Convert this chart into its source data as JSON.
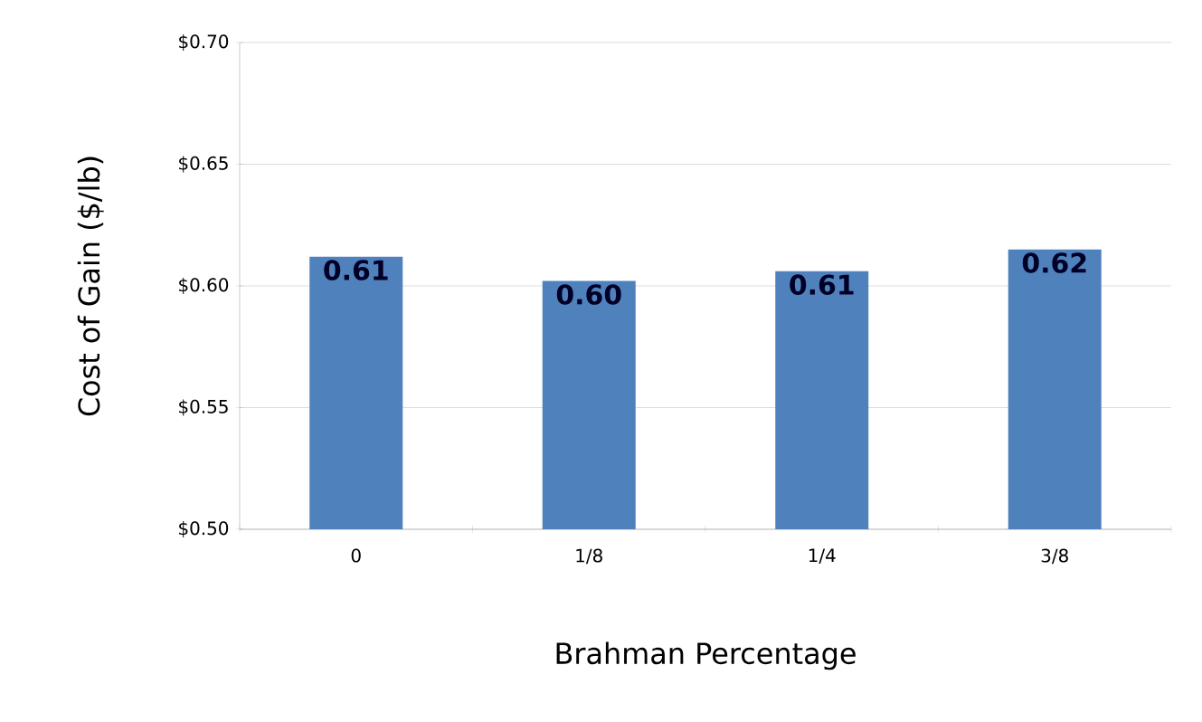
{
  "chart_data": {
    "type": "bar",
    "xlabel": "Brahman Percentage",
    "ylabel": "Cost of Gain ($/lb)",
    "categories": [
      "0",
      "1/8",
      "1/4",
      "3/8"
    ],
    "values": [
      0.612,
      0.602,
      0.606,
      0.615
    ],
    "value_labels": [
      "0.61",
      "0.60",
      "0.61",
      "0.62"
    ],
    "color": "#4f81bd",
    "ylim": [
      0.5,
      0.7
    ],
    "yticks": [
      {
        "value": 0.5,
        "label": "$0.50"
      },
      {
        "value": 0.55,
        "label": "$0.55"
      },
      {
        "value": 0.6,
        "label": "$0.60"
      },
      {
        "value": 0.65,
        "label": "$0.65"
      },
      {
        "value": 0.7,
        "label": "$0.70"
      }
    ],
    "grid": "y"
  }
}
